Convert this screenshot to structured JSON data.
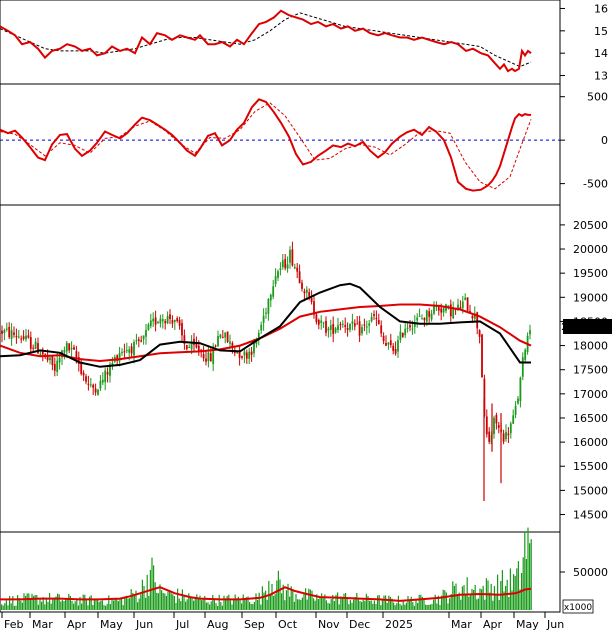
{
  "colors": {
    "price": "#dd0000",
    "up": "#1a9a1a",
    "down": "#cc0000",
    "ma_black": "#000000",
    "ma_red": "#dd0000",
    "dash": "#000000",
    "zero_line": "#0000cc",
    "vol": "#1a9a1a",
    "vol_ma": "#dd0000",
    "price_tag_bg": "#000000",
    "price_tag_fg": "#ffffff"
  },
  "chart_data": [
    {
      "type": "line",
      "panel": "top-indicator",
      "y_ticks": [
        "16",
        "15",
        "14",
        "13"
      ],
      "ylim": [
        12.8,
        16.2
      ],
      "series": [
        {
          "style": "solid-red",
          "x": [
            0,
            8,
            15,
            22,
            30,
            38,
            45,
            52,
            60,
            67,
            75,
            82,
            90,
            97,
            105,
            112,
            120,
            127,
            135,
            142,
            150,
            157,
            165,
            172,
            180,
            187,
            195,
            200,
            208,
            215,
            222,
            230,
            237,
            244,
            252,
            259,
            266,
            274,
            281,
            289,
            296,
            303,
            311,
            318,
            326,
            333,
            341,
            348,
            355,
            363,
            370,
            378,
            385,
            392,
            400,
            407,
            414,
            422,
            429,
            436,
            444,
            451,
            458,
            466,
            473,
            481,
            488,
            492,
            496,
            500,
            504,
            508,
            512,
            515,
            519,
            522,
            525,
            528,
            531
          ],
          "values": [
            15.2,
            15.0,
            14.8,
            14.4,
            14.5,
            14.2,
            13.8,
            14.1,
            14.2,
            14.4,
            14.3,
            14.1,
            14.2,
            13.9,
            14.0,
            14.3,
            14.1,
            14.2,
            14.0,
            14.7,
            14.4,
            14.9,
            14.8,
            14.6,
            14.8,
            14.7,
            14.6,
            14.8,
            14.4,
            14.4,
            14.5,
            14.3,
            14.6,
            14.4,
            14.9,
            15.3,
            15.4,
            15.6,
            15.9,
            15.7,
            15.6,
            15.5,
            15.3,
            15.4,
            15.2,
            15.3,
            15.1,
            15.2,
            15.0,
            15.1,
            14.9,
            14.8,
            14.9,
            14.8,
            14.7,
            14.7,
            14.6,
            14.7,
            14.6,
            14.5,
            14.4,
            14.5,
            14.4,
            14.1,
            14.2,
            14.0,
            13.9,
            13.7,
            13.5,
            13.3,
            13.5,
            13.2,
            13.3,
            13.2,
            13.3,
            14.1,
            13.9,
            14.1,
            14.0
          ]
        },
        {
          "style": "dashed-black",
          "x": [
            0,
            15,
            30,
            45,
            60,
            75,
            90,
            105,
            120,
            135,
            150,
            165,
            180,
            195,
            210,
            225,
            240,
            255,
            270,
            285,
            300,
            315,
            330,
            345,
            360,
            375,
            390,
            405,
            420,
            435,
            450,
            465,
            480,
            495,
            510,
            520,
            531
          ],
          "values": [
            15.1,
            14.8,
            14.5,
            14.2,
            14.1,
            14.1,
            14.1,
            14.0,
            14.1,
            14.2,
            14.4,
            14.6,
            14.7,
            14.7,
            14.6,
            14.5,
            14.4,
            14.6,
            15.0,
            15.5,
            15.8,
            15.6,
            15.4,
            15.2,
            15.1,
            15.0,
            14.9,
            14.8,
            14.7,
            14.6,
            14.5,
            14.4,
            14.3,
            13.9,
            13.6,
            13.4,
            13.6
          ]
        }
      ]
    },
    {
      "type": "line",
      "panel": "oscillator",
      "y_ticks": [
        "500",
        "0",
        "-500"
      ],
      "ylim": [
        -700,
        600
      ],
      "zero_line": true,
      "series": [
        {
          "style": "solid-red",
          "x": [
            0,
            8,
            15,
            22,
            30,
            38,
            45,
            52,
            60,
            67,
            75,
            82,
            90,
            97,
            105,
            112,
            120,
            127,
            135,
            142,
            150,
            157,
            165,
            172,
            180,
            187,
            195,
            200,
            208,
            215,
            222,
            230,
            237,
            244,
            252,
            259,
            266,
            274,
            281,
            289,
            296,
            303,
            311,
            318,
            326,
            333,
            341,
            348,
            355,
            363,
            370,
            378,
            385,
            392,
            400,
            407,
            414,
            422,
            429,
            436,
            444,
            451,
            458,
            466,
            473,
            481,
            488,
            492,
            496,
            500,
            504,
            508,
            512,
            515,
            519,
            522,
            525,
            528,
            531
          ],
          "values": [
            120,
            80,
            110,
            30,
            -80,
            -200,
            -230,
            -50,
            60,
            70,
            -100,
            -180,
            -120,
            -30,
            100,
            60,
            20,
            80,
            180,
            260,
            230,
            180,
            120,
            60,
            -30,
            -120,
            -180,
            -100,
            50,
            80,
            -60,
            0,
            120,
            200,
            380,
            470,
            440,
            320,
            200,
            40,
            -160,
            -280,
            -250,
            -180,
            -120,
            -60,
            -80,
            -40,
            -70,
            -20,
            -120,
            -200,
            -140,
            -40,
            40,
            90,
            120,
            60,
            150,
            100,
            0,
            -200,
            -480,
            -560,
            -580,
            -570,
            -520,
            -470,
            -400,
            -300,
            -150,
            0,
            150,
            250,
            300,
            280,
            300,
            290,
            290
          ]
        },
        {
          "style": "dashed-red",
          "x": [
            0,
            15,
            30,
            45,
            60,
            75,
            90,
            105,
            120,
            135,
            150,
            165,
            180,
            195,
            210,
            225,
            240,
            255,
            270,
            285,
            300,
            315,
            330,
            345,
            360,
            375,
            390,
            405,
            420,
            435,
            450,
            465,
            480,
            495,
            510,
            520,
            531
          ],
          "values": [
            100,
            70,
            -50,
            -180,
            -30,
            -60,
            -150,
            20,
            40,
            160,
            220,
            110,
            -40,
            -150,
            30,
            20,
            120,
            330,
            430,
            280,
            30,
            -230,
            -210,
            -100,
            -50,
            -80,
            -170,
            -50,
            90,
            110,
            80,
            -250,
            -480,
            -560,
            -420,
            -100,
            240
          ]
        }
      ]
    },
    {
      "type": "candlestick",
      "panel": "price",
      "y_ticks": [
        "20500",
        "20000",
        "19500",
        "19000",
        "18500",
        "18000",
        "17500",
        "17000",
        "16500",
        "16000",
        "15500",
        "15000",
        "14500"
      ],
      "ylim": [
        14200,
        20850
      ],
      "last_price": "18450.00",
      "ohlc_seed_path": {
        "x": [
          0,
          20,
          40,
          55,
          65,
          75,
          90,
          100,
          120,
          140,
          150,
          160,
          175,
          185,
          200,
          210,
          220,
          235,
          245,
          255,
          265,
          275,
          285,
          290,
          300,
          310,
          320,
          330,
          340,
          350,
          360,
          375,
          385,
          395,
          405,
          415,
          425,
          435,
          445,
          455,
          465,
          475,
          480,
          485,
          490,
          495,
          500,
          505,
          510,
          515,
          520,
          525,
          531
        ],
        "values": [
          18300,
          18200,
          17900,
          17500,
          18000,
          17800,
          17100,
          17200,
          17900,
          18000,
          18400,
          18600,
          18550,
          18000,
          17900,
          17700,
          18300,
          17900,
          17800,
          18000,
          18700,
          19500,
          19700,
          19900,
          19400,
          18900,
          18450,
          18300,
          18500,
          18400,
          18300,
          18600,
          18000,
          17900,
          18400,
          18500,
          18600,
          18800,
          18750,
          18700,
          18900,
          18600,
          18200,
          16200,
          16000,
          16500,
          16200,
          16100,
          16300,
          16600,
          17200,
          18000,
          18450
        ]
      },
      "series": [
        {
          "name": "",
          "style": "ma-black",
          "x": [
            0,
            20,
            40,
            60,
            80,
            100,
            120,
            140,
            160,
            180,
            200,
            220,
            240,
            260,
            280,
            300,
            320,
            340,
            350,
            360,
            380,
            400,
            420,
            440,
            460,
            480,
            500,
            520,
            531
          ],
          "values": [
            17780,
            17800,
            17900,
            17850,
            17650,
            17560,
            17600,
            17700,
            18020,
            18080,
            18050,
            17900,
            17880,
            18150,
            18400,
            18900,
            19100,
            19250,
            19280,
            19200,
            18800,
            18500,
            18450,
            18450,
            18480,
            18500,
            18250,
            17650,
            17650
          ]
        },
        {
          "name": "",
          "style": "ma-red",
          "x": [
            0,
            20,
            40,
            60,
            80,
            100,
            120,
            140,
            160,
            180,
            200,
            220,
            240,
            260,
            280,
            300,
            320,
            340,
            360,
            380,
            400,
            420,
            440,
            460,
            480,
            500,
            520,
            531
          ],
          "values": [
            18000,
            17850,
            17780,
            17800,
            17720,
            17680,
            17720,
            17780,
            17840,
            17860,
            17880,
            17920,
            18000,
            18150,
            18350,
            18600,
            18700,
            18750,
            18800,
            18820,
            18850,
            18850,
            18820,
            18750,
            18600,
            18380,
            18100,
            18000
          ]
        }
      ]
    },
    {
      "type": "bar",
      "panel": "volume",
      "y_ticks": [
        "50000"
      ],
      "unit_label": "x1000",
      "ylim": [
        0,
        100000
      ],
      "volume_level_path": {
        "x": [
          0,
          40,
          80,
          120,
          140,
          150,
          160,
          180,
          200,
          220,
          240,
          260,
          270,
          285,
          300,
          320,
          340,
          360,
          380,
          400,
          420,
          440,
          460,
          480,
          500,
          515,
          520,
          525,
          531
        ],
        "values": [
          12000,
          15000,
          13000,
          12000,
          24000,
          50000,
          22000,
          18000,
          14000,
          13000,
          14000,
          16000,
          42000,
          25000,
          20000,
          15000,
          16000,
          14000,
          13000,
          12000,
          13000,
          16000,
          30000,
          26000,
          33000,
          38000,
          45000,
          90000,
          70000
        ]
      },
      "series": [
        {
          "name": "",
          "style": "vol-ma-red",
          "x": [
            0,
            20,
            40,
            60,
            80,
            100,
            120,
            130,
            140,
            150,
            160,
            175,
            190,
            200,
            220,
            240,
            260,
            270,
            285,
            295,
            310,
            320,
            340,
            360,
            380,
            400,
            420,
            440,
            460,
            480,
            500,
            515,
            520,
            525,
            531
          ],
          "values": [
            14000,
            14000,
            15000,
            15000,
            14000,
            14000,
            15000,
            18000,
            22000,
            26000,
            30000,
            22000,
            17000,
            15000,
            14000,
            14000,
            16000,
            20000,
            30000,
            25000,
            20000,
            17000,
            16000,
            15000,
            14000,
            12000,
            14000,
            16000,
            20000,
            21000,
            20000,
            22000,
            24000,
            27000,
            28000
          ]
        }
      ]
    }
  ],
  "x_axis": {
    "labels": [
      "Feb",
      "Mar",
      "Apr",
      "May",
      "Jun",
      "Jul",
      "Aug",
      "Sep",
      "Oct",
      "Nov",
      "Dec",
      "2025",
      "Mar",
      "Apr",
      "May",
      "Jun"
    ]
  }
}
